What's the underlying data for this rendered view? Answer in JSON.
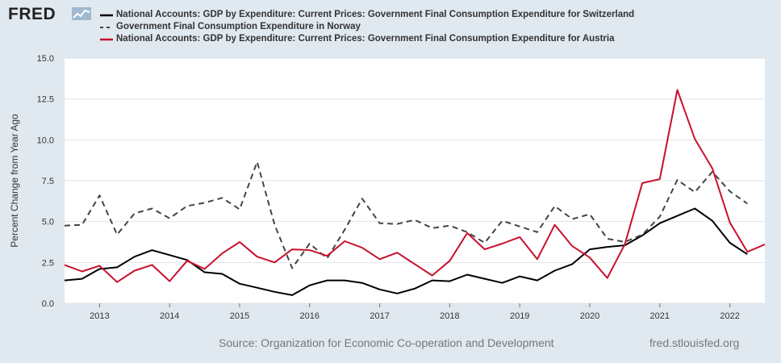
{
  "brand": {
    "logo_text": "FRED"
  },
  "footer": {
    "source": "Source: Organization for Economic Co-operation and Development",
    "site": "fred.stlouisfed.org"
  },
  "chart_data": {
    "type": "line",
    "ylabel": "Percent Change from Year Ago",
    "ylim": [
      0,
      15
    ],
    "yticks": [
      "0.0",
      "2.5",
      "5.0",
      "7.5",
      "10.0",
      "12.5",
      "15.0"
    ],
    "ytick_values": [
      0,
      2.5,
      5,
      7.5,
      10,
      12.5,
      15
    ],
    "xlim": [
      2012.5,
      2022.5
    ],
    "xticks": [
      "2013",
      "2014",
      "2015",
      "2016",
      "2017",
      "2018",
      "2019",
      "2020",
      "2021",
      "2022"
    ],
    "xtick_values": [
      2013,
      2014,
      2015,
      2016,
      2017,
      2018,
      2019,
      2020,
      2021,
      2022
    ],
    "grid": "horizontal",
    "legend_position": "top",
    "series": [
      {
        "name": "National Accounts: GDP by Expenditure: Current Prices: Government Final Consumption Expenditure for Switzerland",
        "color": "#000000",
        "dash": "solid",
        "x": [
          2012.5,
          2012.75,
          2013.0,
          2013.25,
          2013.5,
          2013.75,
          2014.0,
          2014.25,
          2014.5,
          2014.75,
          2015.0,
          2015.25,
          2015.5,
          2015.75,
          2016.0,
          2016.25,
          2016.5,
          2016.75,
          2017.0,
          2017.25,
          2017.5,
          2017.75,
          2018.0,
          2018.25,
          2018.5,
          2018.75,
          2019.0,
          2019.25,
          2019.5,
          2019.75,
          2020.0,
          2020.25,
          2020.5,
          2020.75,
          2021.0,
          2021.25,
          2021.5,
          2021.75,
          2022.0,
          2022.25
        ],
        "values": [
          1.4,
          1.5,
          2.1,
          2.2,
          2.85,
          3.25,
          2.95,
          2.65,
          1.9,
          1.8,
          1.2,
          0.95,
          0.7,
          0.5,
          1.1,
          1.4,
          1.4,
          1.25,
          0.85,
          0.6,
          0.9,
          1.4,
          1.35,
          1.75,
          1.5,
          1.25,
          1.65,
          1.4,
          2.0,
          2.4,
          3.3,
          3.45,
          3.55,
          4.15,
          4.9,
          5.35,
          5.8,
          5.05,
          3.7,
          3.0
        ]
      },
      {
        "name": "Government Final Consumption Expenditure in Norway",
        "color": "#444444",
        "dash": "dashed",
        "x": [
          2012.5,
          2012.75,
          2013.0,
          2013.25,
          2013.5,
          2013.75,
          2014.0,
          2014.25,
          2014.5,
          2014.75,
          2015.0,
          2015.25,
          2015.5,
          2015.75,
          2016.0,
          2016.25,
          2016.5,
          2016.75,
          2017.0,
          2017.25,
          2017.5,
          2017.75,
          2018.0,
          2018.25,
          2018.5,
          2018.75,
          2019.0,
          2019.25,
          2019.5,
          2019.75,
          2020.0,
          2020.25,
          2020.5,
          2020.75,
          2021.0,
          2021.25,
          2021.5,
          2021.75,
          2022.0,
          2022.25
        ],
        "values": [
          4.75,
          4.8,
          6.6,
          4.2,
          5.5,
          5.8,
          5.2,
          5.95,
          6.15,
          6.45,
          5.75,
          8.65,
          4.8,
          2.15,
          3.65,
          2.75,
          4.5,
          6.4,
          4.9,
          4.85,
          5.1,
          4.6,
          4.75,
          4.35,
          3.7,
          5.05,
          4.7,
          4.35,
          5.95,
          5.15,
          5.45,
          3.95,
          3.75,
          4.2,
          5.3,
          7.55,
          6.8,
          8.05,
          6.85,
          6.1
        ]
      },
      {
        "name": "National Accounts: GDP by Expenditure: Current Prices: Government Final Consumption Expenditure for Austria",
        "color": "#c8102e",
        "dash": "solid",
        "x": [
          2012.5,
          2012.75,
          2013.0,
          2013.25,
          2013.5,
          2013.75,
          2014.0,
          2014.25,
          2014.5,
          2014.75,
          2015.0,
          2015.25,
          2015.5,
          2015.75,
          2016.0,
          2016.25,
          2016.5,
          2016.75,
          2017.0,
          2017.25,
          2017.5,
          2017.75,
          2018.0,
          2018.25,
          2018.5,
          2018.75,
          2019.0,
          2019.25,
          2019.5,
          2019.75,
          2020.0,
          2020.25,
          2020.5,
          2020.75,
          2021.0,
          2021.25,
          2021.5,
          2021.75,
          2022.0,
          2022.25,
          2022.5
        ],
        "values": [
          2.35,
          1.95,
          2.3,
          1.3,
          2.0,
          2.35,
          1.35,
          2.6,
          2.1,
          3.05,
          3.75,
          2.85,
          2.5,
          3.3,
          3.25,
          2.9,
          3.8,
          3.4,
          2.7,
          3.1,
          2.4,
          1.7,
          2.6,
          4.3,
          3.3,
          3.65,
          4.05,
          2.7,
          4.8,
          3.5,
          2.8,
          1.55,
          3.6,
          7.35,
          7.6,
          13.05,
          10.05,
          8.25,
          4.95,
          3.15,
          3.6
        ]
      }
    ]
  }
}
